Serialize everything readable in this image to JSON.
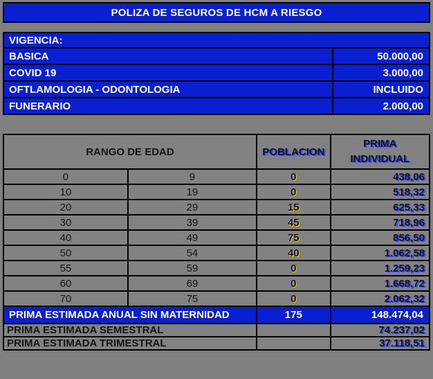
{
  "title": "POLIZA DE SEGUROS DE HCM A RIESGO",
  "colors": {
    "primary_blue": "#0a1ed2",
    "background_gray": "#808080",
    "cell_gray": "#828282",
    "border_black": "#000000",
    "premium_shadow_blue": "#3847f0",
    "population_yellow": "#f0c400",
    "text_white": "#ffffff"
  },
  "coverage": {
    "header": "VIGENCIA:",
    "rows": [
      {
        "label": "BASICA",
        "value": "50.000,00"
      },
      {
        "label": "COVID 19",
        "value": "3.000,00"
      },
      {
        "label": "OFTLAMOLOGIA - ODONTOLOGIA",
        "value": "INCLUIDO"
      },
      {
        "label": "FUNERARIO",
        "value": "2.000,00"
      }
    ]
  },
  "age_table": {
    "headers": {
      "age_range": "RANGO DE EDAD",
      "population": "POBLACION",
      "premium_line1": "PRIMA",
      "premium_line2": "INDIVIDUAL"
    },
    "rows": [
      {
        "age_from": "0",
        "age_to": "9",
        "population": "0",
        "premium": "438,06"
      },
      {
        "age_from": "10",
        "age_to": "19",
        "population": "0",
        "premium": "518,32"
      },
      {
        "age_from": "20",
        "age_to": "29",
        "population": "15",
        "premium": "625,33"
      },
      {
        "age_from": "30",
        "age_to": "39",
        "population": "45",
        "premium": "718,96"
      },
      {
        "age_from": "40",
        "age_to": "49",
        "population": "75",
        "premium": "856,50"
      },
      {
        "age_from": "50",
        "age_to": "54",
        "population": "40",
        "premium": "1.062,58"
      },
      {
        "age_from": "55",
        "age_to": "59",
        "population": "0",
        "premium": "1.259,23"
      },
      {
        "age_from": "60",
        "age_to": "69",
        "population": "0",
        "premium": "1.668,72"
      },
      {
        "age_from": "70",
        "age_to": "75",
        "population": "0",
        "premium": "2.062,32"
      }
    ],
    "total_row": {
      "label": "PRIMA ESTIMADA ANUAL SIN MATERNIDAD",
      "population": "175",
      "premium": "148.474,04"
    },
    "summary_rows": [
      {
        "label": "PRIMA ESTIMADA SEMESTRAL",
        "population": "",
        "premium": "74.237,02"
      },
      {
        "label": "PRIMA ESTIMADA TRIMESTRAL",
        "population": "",
        "premium": "37.118,51"
      }
    ]
  }
}
